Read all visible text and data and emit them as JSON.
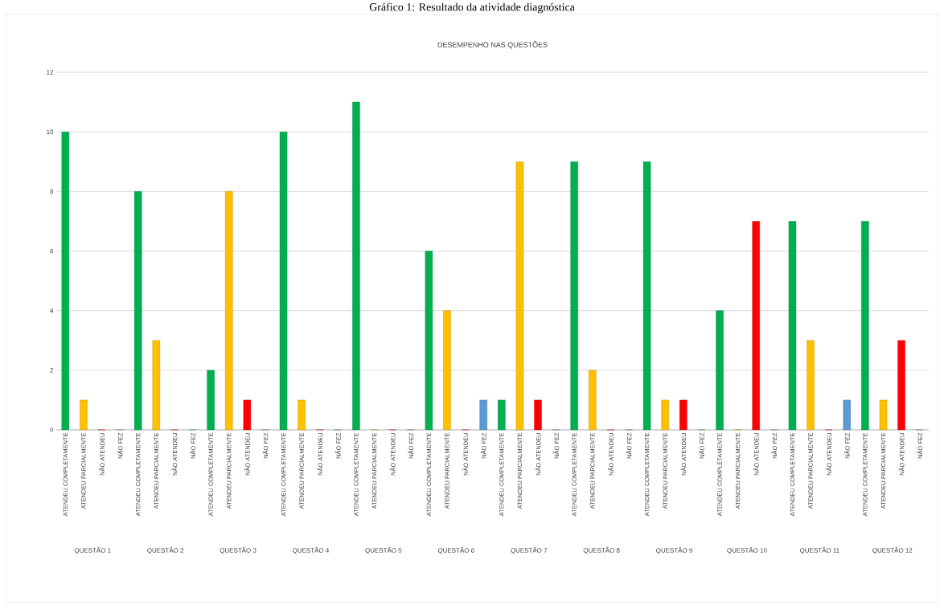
{
  "chart_data": {
    "type": "bar",
    "title": "Gráfico 1: Resultado da atividade diagnóstica",
    "subtitle": "DESEMPENHO NAS QUESTÕES",
    "categories": [
      "ATENDEU COMPLETAMENTE",
      "ATENDEU PARCIALMENTE",
      "NÃO ATENDEU",
      "NÃO FEZ",
      "ATENDEU COMPLETAMENTE",
      "ATENDEU PARCIALMENTE",
      "NÃO ATENDEU",
      "NÃO FEZ",
      "ATENDEU COMPLETAMENTE",
      "ATENDEU PARCIALMENTE",
      "NÃO ATENDEU",
      "NÃO FEZ",
      "ATENDEU COMPLETAMENTE",
      "ATENDEU PARCIALMENTE",
      "NÃO ATENDEU",
      "NÃO FEZ",
      "ATENDEU COMPLETAMENTE",
      "ATENDEU PARCIALMENTE",
      "NÃO ATENDEU",
      "NÃO FEZ",
      "ATENDEU COMPLETAMENTE",
      "ATENDEU PARCIALMENTE",
      "NÃO ATENDEU",
      "NÃO FEZ",
      "ATENDEU COMPLETAMENTE",
      "ATENDEU PARCIALMENTE",
      "NÃO ATENDEU",
      "NÃO FEZ",
      "ATENDEU COMPLETAMENTE",
      "ATENDEU PARCIALMENTE",
      "NÃO ATENDEU",
      "NÃO FEZ",
      "ATENDEU COMPLETAMENTE",
      "ATENDEU PARCIALMENTE",
      "NÃO ATENDEU",
      "NÃO FEZ",
      "ATENDEU COMPLETAMENTE",
      "ATENDEU PARCIALMENTE",
      "NÃO ATENDEU",
      "NÃO FEZ",
      "ATENDEU COMPLETAMENTE",
      "ATENDEU PARCIALMENTE",
      "NÃO ATENDEU",
      "NÃO FEZ",
      "ATENDEU COMPLETAMENTE",
      "ATENDEU PARCIALMENTE",
      "NÃO ATENDEU",
      "NÃO FEZ"
    ],
    "values": [
      10,
      1,
      0,
      0,
      8,
      3,
      0,
      0,
      2,
      8,
      1,
      0,
      10,
      1,
      0,
      0,
      11,
      0,
      0,
      0,
      6,
      4,
      0,
      1,
      1,
      9,
      1,
      0,
      9,
      2,
      0,
      0,
      9,
      1,
      1,
      0,
      4,
      0,
      7,
      0,
      7,
      3,
      0,
      1,
      7,
      1,
      3,
      0
    ],
    "colors": [
      "#00b050",
      "#ffc000",
      "#ff0000",
      "#5b9bd5",
      "#00b050",
      "#ffc000",
      "#ff0000",
      "#5b9bd5",
      "#00b050",
      "#ffc000",
      "#ff0000",
      "#5b9bd5",
      "#00b050",
      "#ffc000",
      "#ff0000",
      "#5b9bd5",
      "#00b050",
      "#ffc000",
      "#ff0000",
      "#5b9bd5",
      "#00b050",
      "#ffc000",
      "#ff0000",
      "#5b9bd5",
      "#00b050",
      "#ffc000",
      "#ff0000",
      "#5b9bd5",
      "#00b050",
      "#ffc000",
      "#ff0000",
      "#5b9bd5",
      "#00b050",
      "#ffc000",
      "#ff0000",
      "#5b9bd5",
      "#00b050",
      "#ffc000",
      "#ff0000",
      "#5b9bd5",
      "#00b050",
      "#ffc000",
      "#ff0000",
      "#5b9bd5",
      "#00b050",
      "#ffc000",
      "#ff0000",
      "#5b9bd5"
    ],
    "ylim": [
      0,
      12
    ],
    "yticks": [
      0,
      2,
      4,
      6,
      8,
      10,
      12
    ],
    "grid": "y",
    "annotations": [
      "QUESTÃO 1",
      "QUESTÃO 2",
      "QUESTÃO 3",
      "QUESTÃO 4",
      "QUESTÃO 5",
      "QUESTÃO 6",
      "QUESTÃO 7",
      "QUESTÃO 8",
      "QUESTÃO 9",
      "QUESTÃO 10",
      "QUESTÃO 11",
      "QUESTÃO 12"
    ]
  }
}
